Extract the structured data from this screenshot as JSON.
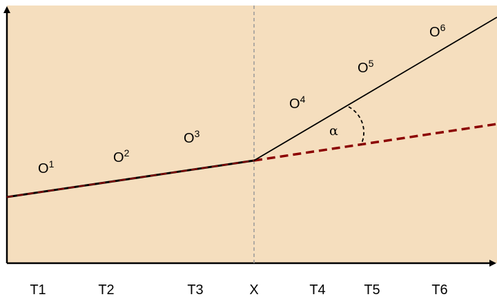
{
  "diagram": {
    "background_color": "#F5DEBE",
    "accent_color": "#8B0000",
    "observation_labels": [
      {
        "base": "O",
        "sup": "1"
      },
      {
        "base": "O",
        "sup": "2"
      },
      {
        "base": "O",
        "sup": "3"
      },
      {
        "base": "O",
        "sup": "4"
      },
      {
        "base": "O",
        "sup": "5"
      },
      {
        "base": "O",
        "sup": "6"
      }
    ],
    "time_labels": [
      "T1",
      "T2",
      "T3",
      "X",
      "T4",
      "T5",
      "T6"
    ],
    "angle_label": "α"
  }
}
